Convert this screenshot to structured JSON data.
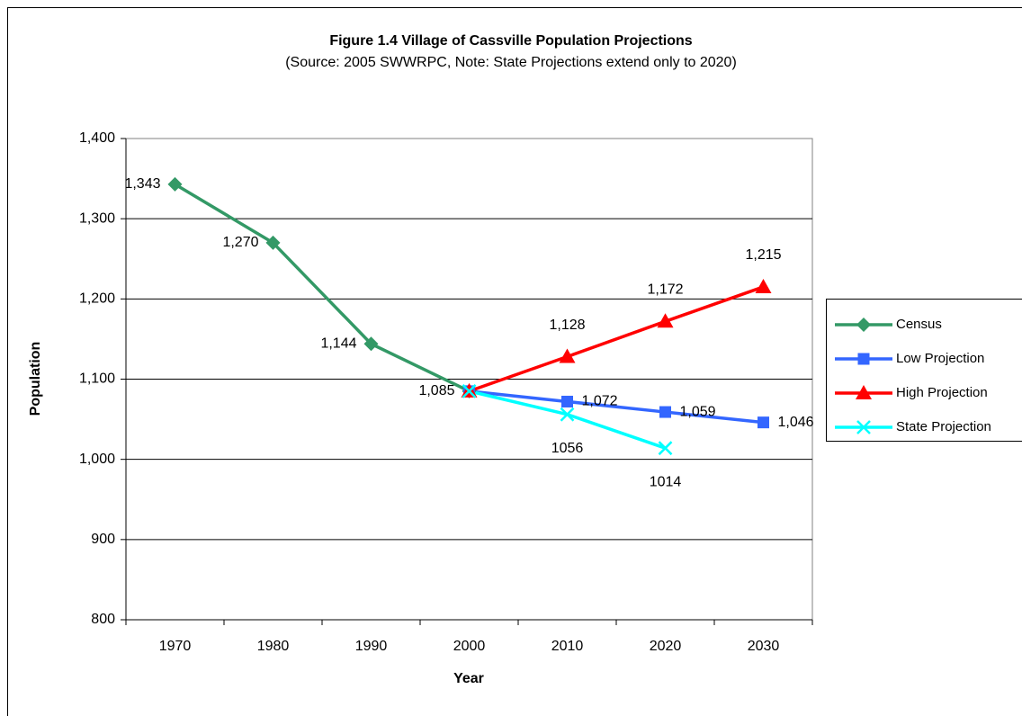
{
  "chart_data": {
    "type": "line",
    "title": "Figure 1.4 Village of Cassville Population Projections",
    "subtitle": "(Source:  2005 SWWRPC, Note:  State Projections extend only to 2020)",
    "x_label": "Year",
    "y_label": "Population",
    "categories": [
      "1970",
      "1980",
      "1990",
      "2000",
      "2010",
      "2020",
      "2030"
    ],
    "ylim": [
      800,
      1400
    ],
    "yticks": [
      800,
      900,
      {
        "value": 1000,
        "label": "1,000"
      },
      {
        "value": 1100,
        "label": "1,100"
      },
      {
        "value": 1200,
        "label": "1,200"
      },
      {
        "value": 1300,
        "label": "1,300"
      },
      {
        "value": 1400,
        "label": "1,400"
      }
    ],
    "grid": true,
    "legend": "right",
    "series": [
      {
        "name": "Census",
        "color": "#339966",
        "marker": "diamond",
        "values": [
          1343,
          1270,
          1144,
          1085,
          null,
          null,
          null
        ],
        "value_labels": [
          "1,343",
          "1,270",
          "1,144",
          "1,085",
          null,
          null,
          null
        ]
      },
      {
        "name": "Low Projection",
        "color": "#3366ff",
        "marker": "square",
        "values": [
          null,
          null,
          null,
          1085,
          1072,
          1059,
          1046
        ],
        "value_labels": [
          null,
          null,
          null,
          null,
          "1,072",
          "1,059",
          "1,046"
        ]
      },
      {
        "name": "High Projection",
        "color": "#ff0000",
        "marker": "triangle",
        "values": [
          null,
          null,
          null,
          1085,
          1128,
          1172,
          1215
        ],
        "value_labels": [
          null,
          null,
          null,
          null,
          "1,128",
          "1,172",
          "1,215"
        ]
      },
      {
        "name": "State Projection",
        "color": "#00ffff",
        "marker": "x",
        "values": [
          null,
          null,
          null,
          1085,
          1056,
          1014,
          null
        ],
        "value_labels": [
          null,
          null,
          null,
          null,
          "1056",
          "1014",
          null
        ]
      }
    ]
  }
}
